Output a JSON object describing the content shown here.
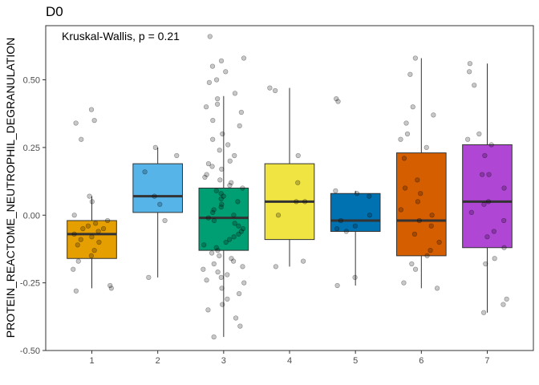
{
  "chart_data": {
    "type": "boxplot",
    "title": "D0",
    "xlabel": "",
    "ylabel": "PROTEIN_REACTOME_NEUTROPHIL_DEGRANULATION",
    "annotation": "Kruskal-Wallis, p = 0.21",
    "ylim": [
      -0.5,
      0.7
    ],
    "yticks": [
      -0.5,
      -0.25,
      0.0,
      0.25,
      0.5
    ],
    "ytick_labels": [
      "-0.50",
      "-0.25",
      "0.00",
      "0.25",
      "0.50"
    ],
    "categories": [
      "1",
      "2",
      "3",
      "4",
      "5",
      "6",
      "7"
    ],
    "grid": false,
    "legend": "none",
    "boxes": [
      {
        "category": "1",
        "color": "#E69F00",
        "min": -0.27,
        "q1": -0.16,
        "median": -0.07,
        "q3": -0.02,
        "max": 0.07,
        "points": [
          0.39,
          0.35,
          0.34,
          0.28,
          0.07,
          0.05,
          0.0,
          -0.02,
          -0.03,
          -0.04,
          -0.05,
          -0.05,
          -0.06,
          -0.07,
          -0.08,
          -0.09,
          -0.1,
          -0.11,
          -0.13,
          -0.15,
          -0.17,
          -0.2,
          -0.26,
          -0.27,
          -0.28
        ]
      },
      {
        "category": "2",
        "color": "#56B4E9",
        "min": -0.23,
        "q1": 0.01,
        "median": 0.07,
        "q3": 0.19,
        "max": 0.25,
        "points": [
          0.25,
          0.22,
          0.16,
          0.07,
          0.04,
          -0.02,
          -0.23
        ]
      },
      {
        "category": "3",
        "color": "#009E73",
        "min": -0.45,
        "q1": -0.13,
        "median": -0.01,
        "q3": 0.1,
        "max": 0.44,
        "points": [
          0.66,
          0.58,
          0.57,
          0.55,
          0.53,
          0.5,
          0.49,
          0.45,
          0.43,
          0.41,
          0.4,
          0.38,
          0.35,
          0.33,
          0.3,
          0.28,
          0.26,
          0.24,
          0.22,
          0.2,
          0.19,
          0.18,
          0.17,
          0.15,
          0.14,
          0.13,
          0.12,
          0.11,
          0.1,
          0.09,
          0.08,
          0.07,
          0.06,
          0.05,
          0.04,
          0.03,
          0.02,
          0.01,
          0.0,
          -0.01,
          -0.02,
          -0.03,
          -0.04,
          -0.05,
          -0.06,
          -0.07,
          -0.08,
          -0.09,
          -0.1,
          -0.11,
          -0.12,
          -0.13,
          -0.14,
          -0.15,
          -0.16,
          -0.17,
          -0.18,
          -0.19,
          -0.2,
          -0.21,
          -0.22,
          -0.23,
          -0.24,
          -0.25,
          -0.27,
          -0.29,
          -0.31,
          -0.33,
          -0.35,
          -0.38,
          -0.41,
          -0.45
        ]
      },
      {
        "category": "4",
        "color": "#F0E442",
        "min": -0.19,
        "q1": -0.09,
        "median": 0.05,
        "q3": 0.19,
        "max": 0.47,
        "points": [
          0.47,
          0.46,
          0.22,
          0.12,
          0.05,
          0.05,
          0.0,
          -0.17,
          -0.19
        ]
      },
      {
        "category": "5",
        "color": "#0072B2",
        "min": -0.26,
        "q1": -0.06,
        "median": -0.02,
        "q3": 0.08,
        "max": 0.09,
        "points": [
          0.43,
          0.42,
          0.09,
          0.08,
          0.07,
          0.0,
          -0.02,
          -0.04,
          -0.05,
          -0.06,
          -0.23,
          -0.26
        ]
      },
      {
        "category": "6",
        "color": "#D55E00",
        "min": -0.27,
        "q1": -0.15,
        "median": -0.02,
        "q3": 0.23,
        "max": 0.58,
        "points": [
          0.58,
          0.52,
          0.4,
          0.37,
          0.34,
          0.3,
          0.28,
          0.25,
          0.21,
          0.13,
          0.1,
          0.08,
          0.05,
          0.02,
          0.0,
          -0.02,
          -0.04,
          -0.07,
          -0.1,
          -0.13,
          -0.15,
          -0.18,
          -0.2,
          -0.25,
          -0.27
        ]
      },
      {
        "category": "7",
        "color": "#AF46D4",
        "min": -0.36,
        "q1": -0.12,
        "median": 0.05,
        "q3": 0.26,
        "max": 0.56,
        "points": [
          0.56,
          0.53,
          0.48,
          0.3,
          0.28,
          0.26,
          0.22,
          0.15,
          0.15,
          0.1,
          0.05,
          0.04,
          0.01,
          -0.02,
          -0.06,
          -0.08,
          -0.12,
          -0.16,
          -0.18,
          -0.31,
          -0.33,
          -0.36
        ]
      }
    ]
  }
}
